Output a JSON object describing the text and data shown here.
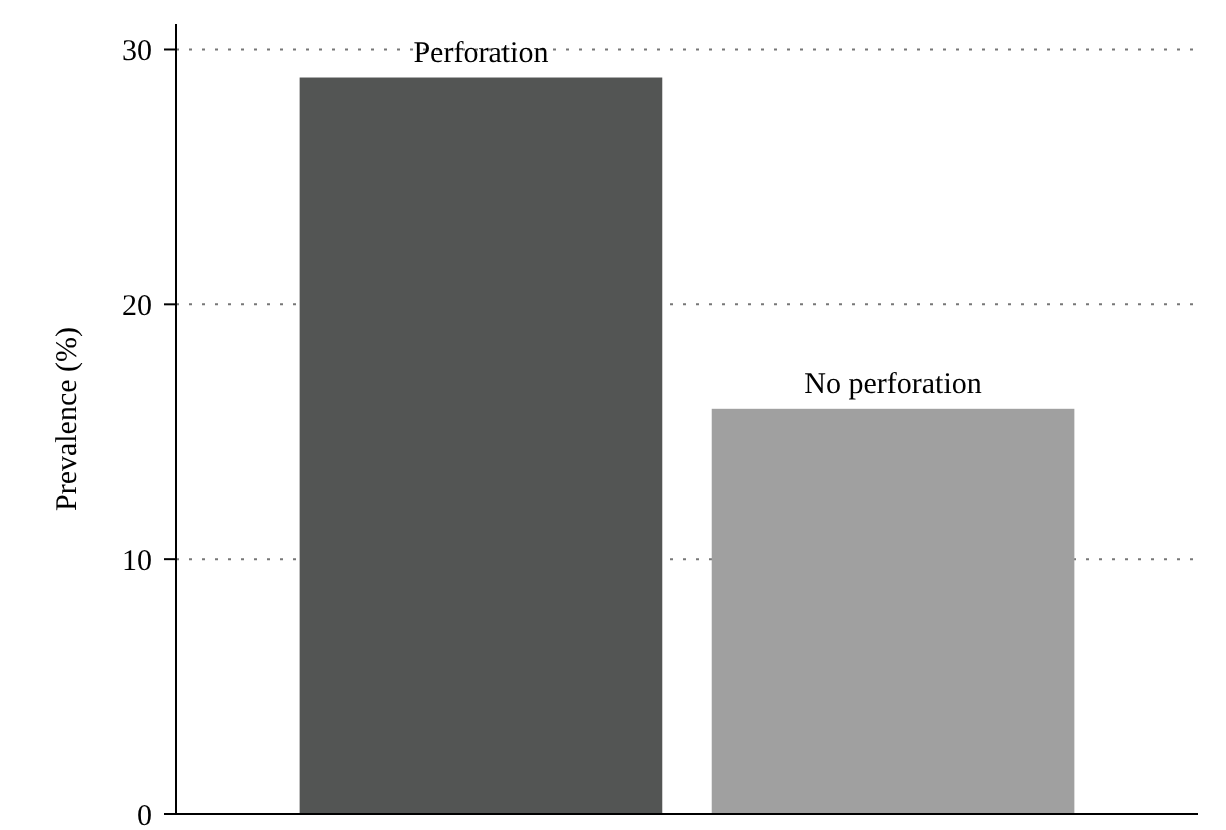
{
  "chart_data": {
    "type": "bar",
    "ylabel": "Prevalence (%)",
    "categories": [
      "Perforation",
      "No perforation"
    ],
    "values": [
      28.9,
      15.9
    ],
    "colors": [
      "#535554",
      "#a0a0a0"
    ],
    "ylim": [
      0,
      31
    ],
    "yticks": [
      0,
      10,
      20,
      30
    ],
    "grid": "y"
  }
}
